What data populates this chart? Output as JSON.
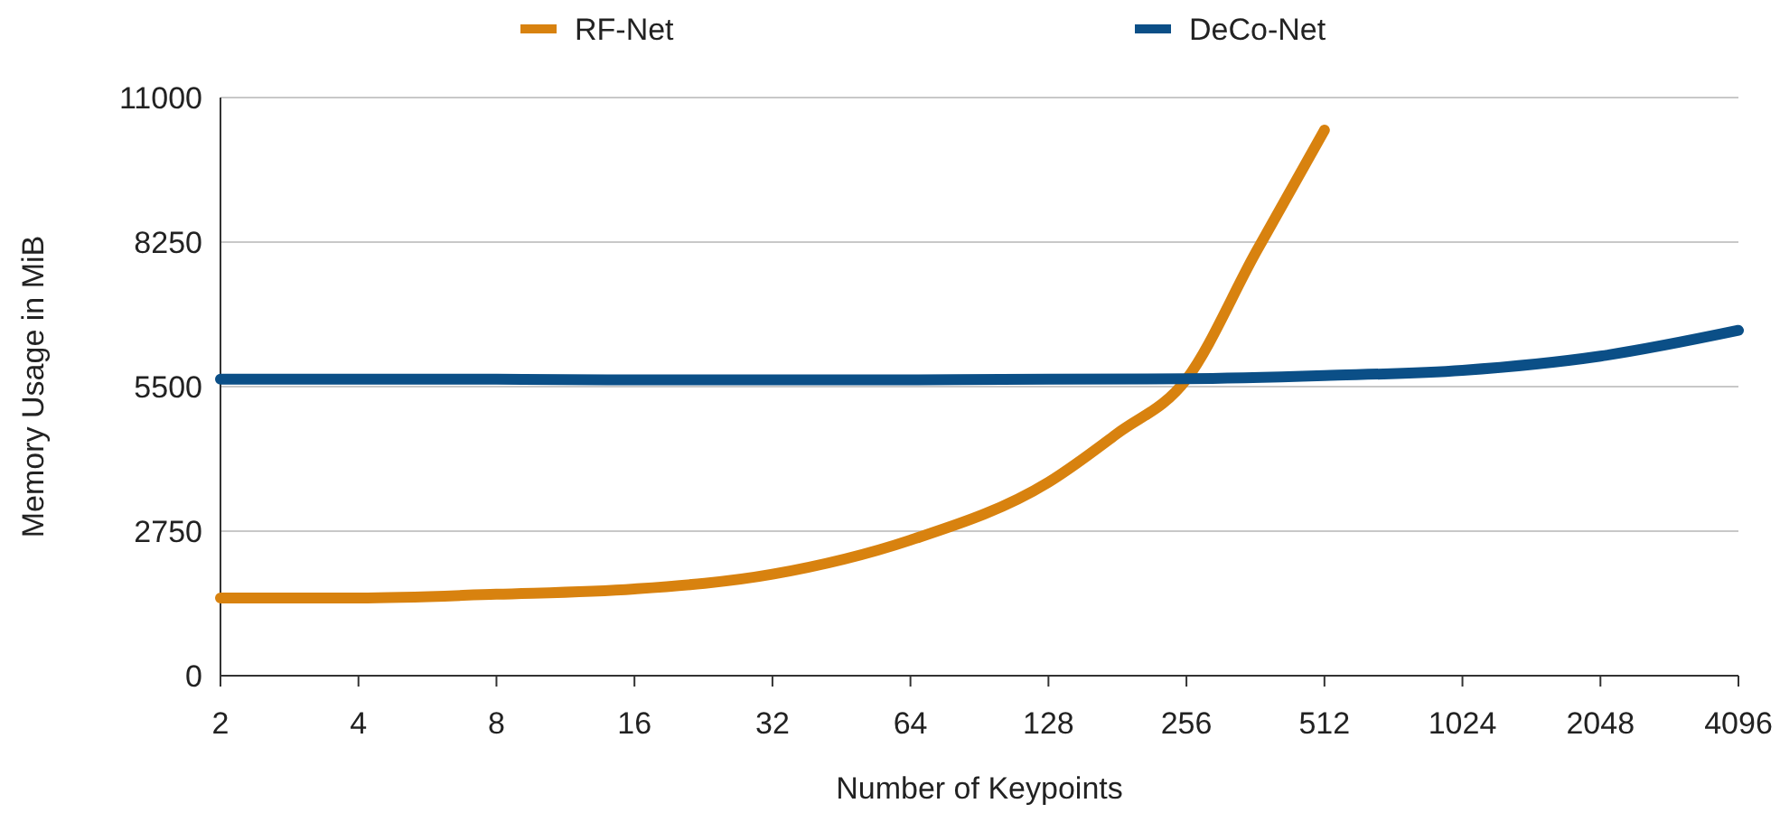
{
  "chart_data": {
    "type": "line",
    "xlabel": "Number of Keypoints",
    "ylabel": "Memory Usage in MiB",
    "log": "x",
    "xlim": [
      2,
      4096
    ],
    "xticks": [
      2,
      4,
      8,
      16,
      32,
      64,
      128,
      256,
      512,
      1024,
      2048,
      4096
    ],
    "ylim": [
      0,
      11000
    ],
    "yticks": [
      0,
      2750,
      5500,
      8250,
      11000
    ],
    "grid": "y",
    "legend": "top",
    "line_style": "solid",
    "marker": "none",
    "series": [
      {
        "name": "RF-Net",
        "color": "#d8820f",
        "x": [
          2,
          4,
          8,
          16,
          32,
          64,
          128,
          181,
          256,
          362,
          512
        ],
        "values": [
          1480,
          1480,
          1550,
          1650,
          1930,
          2580,
          3680,
          4610,
          5640,
          8040,
          10380
        ]
      },
      {
        "name": "DeCo-Net",
        "color": "#0b4f87",
        "x": [
          2,
          4,
          8,
          16,
          32,
          64,
          128,
          256,
          512,
          1024,
          2048,
          4096
        ],
        "values": [
          5640,
          5640,
          5640,
          5630,
          5630,
          5630,
          5640,
          5650,
          5710,
          5810,
          6080,
          6570
        ]
      }
    ]
  }
}
